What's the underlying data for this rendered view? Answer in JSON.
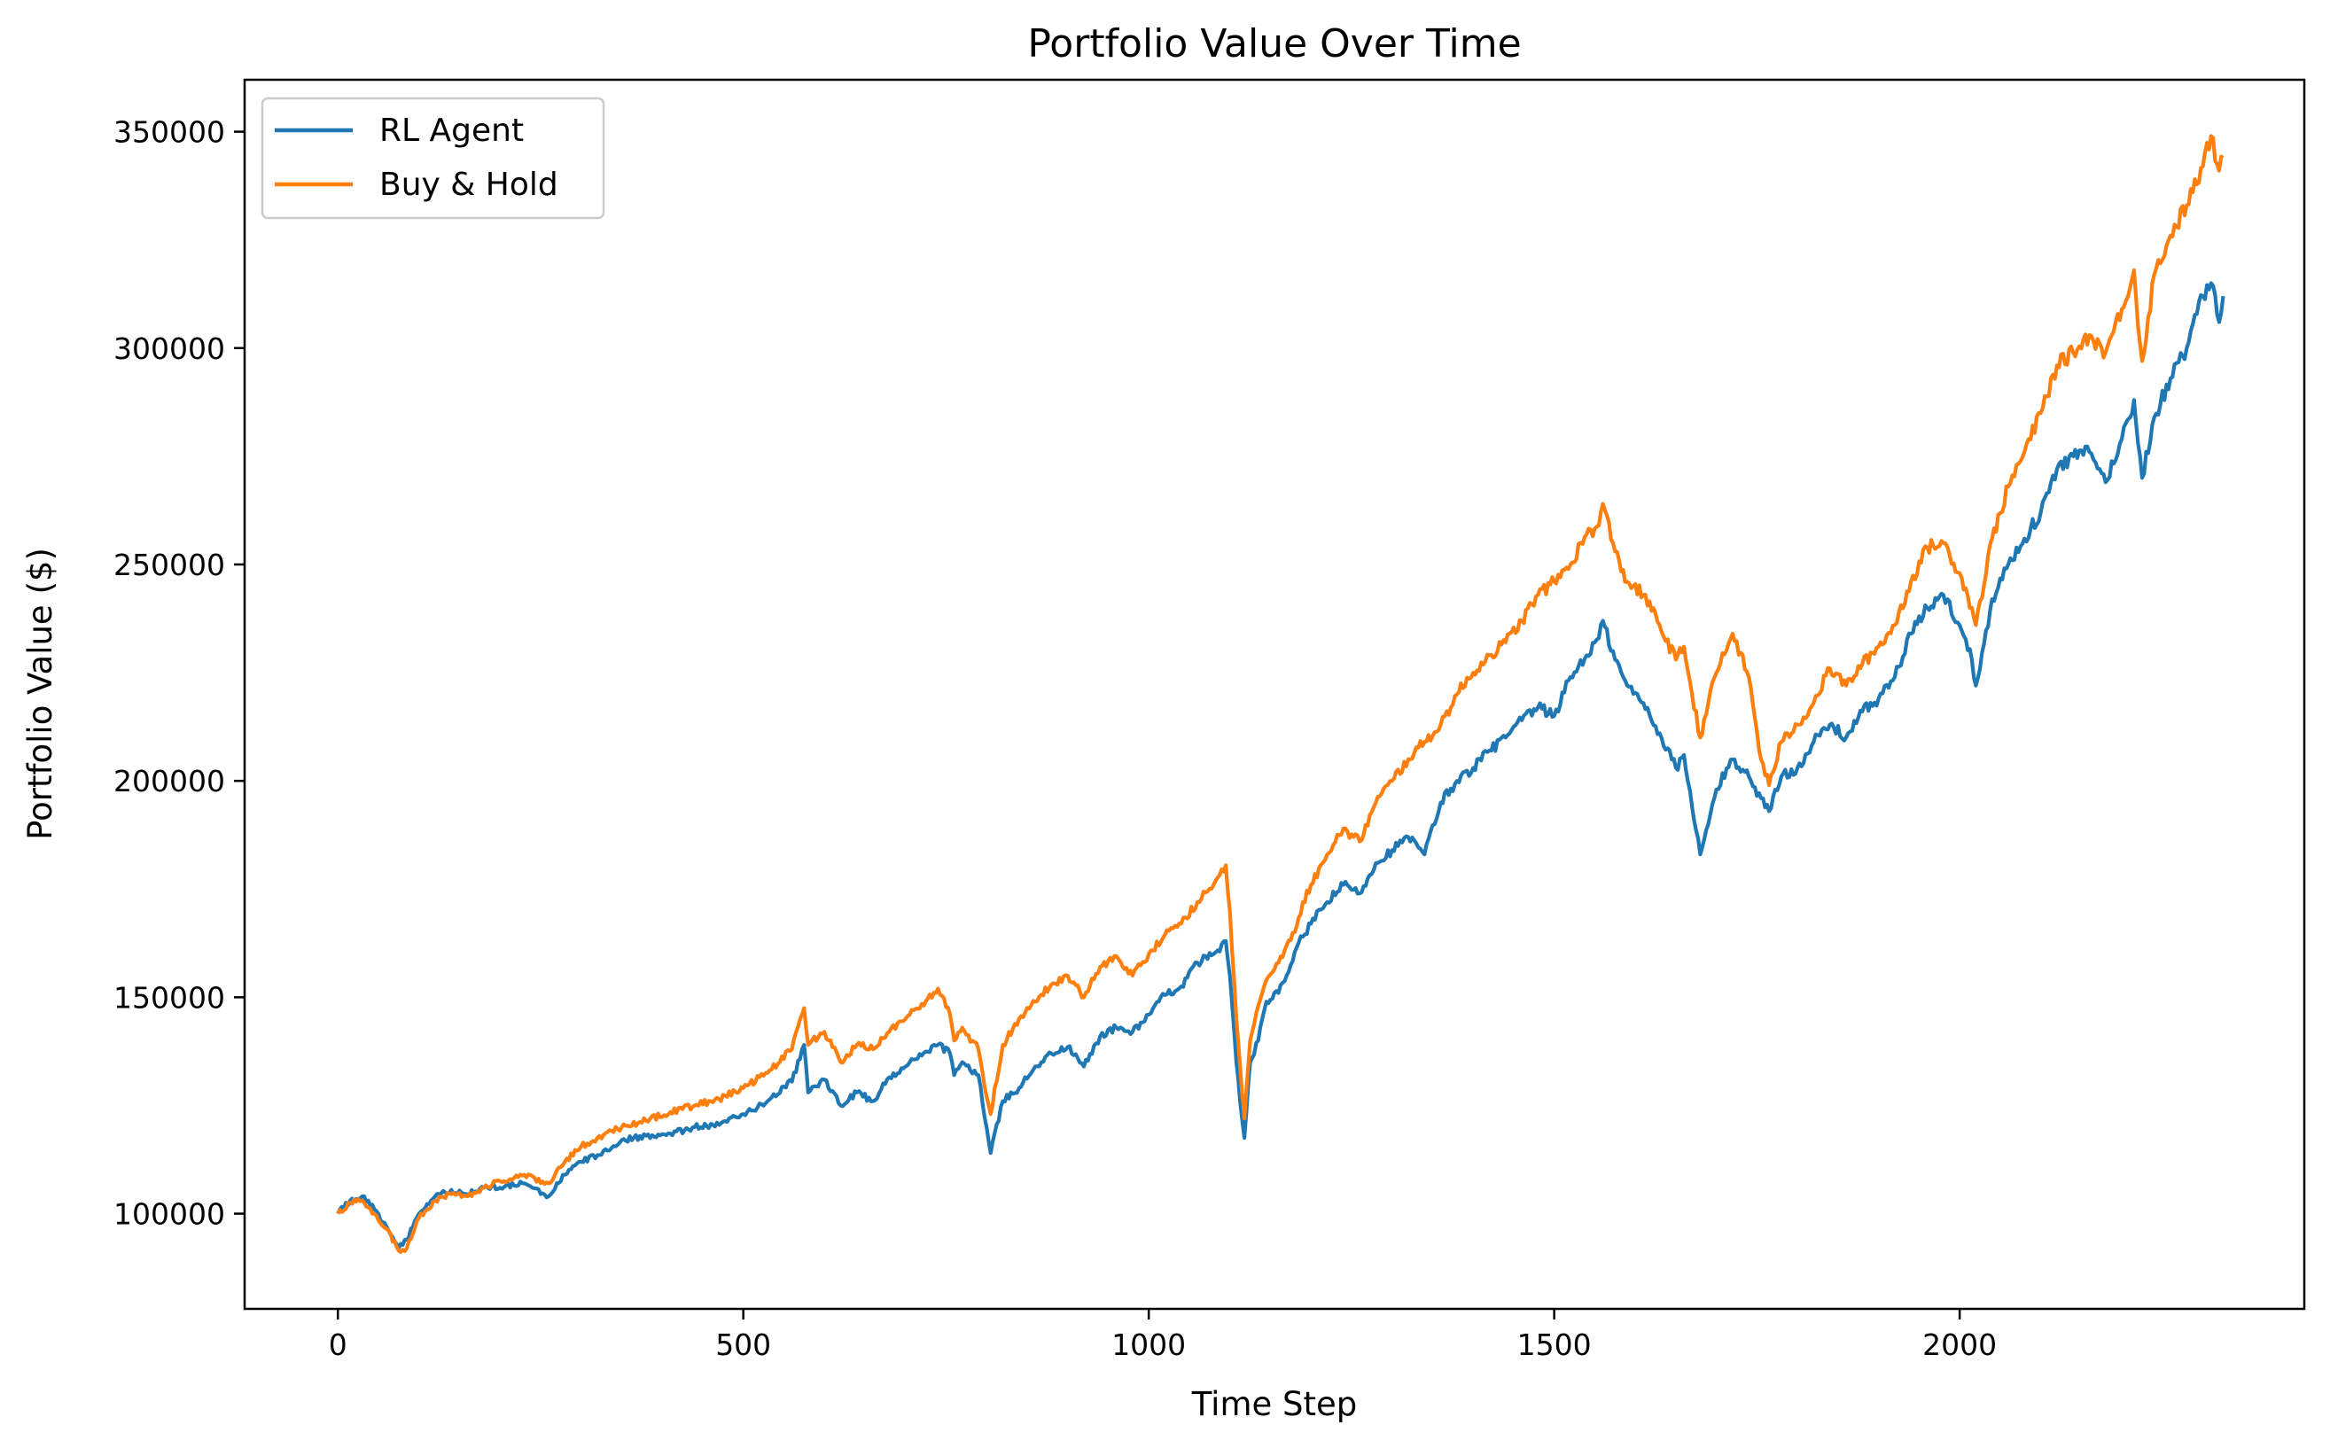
{
  "chart_data": {
    "type": "line",
    "title": "Portfolio Value Over Time",
    "xlabel": "Time Step",
    "ylabel": "Portfolio Value ($)",
    "xlim": [
      -115,
      2425
    ],
    "ylim": [
      78000,
      362000
    ],
    "xticks": [
      0,
      500,
      1000,
      1500,
      2000
    ],
    "yticks": [
      100000,
      150000,
      200000,
      250000,
      300000,
      350000
    ],
    "grid": false,
    "legend_position": "top-left",
    "series": [
      {
        "name": "RL Agent",
        "color": "#1f77b4",
        "points": [
          [
            0,
            100000
          ],
          [
            15,
            103000
          ],
          [
            30,
            104000
          ],
          [
            45,
            101000
          ],
          [
            60,
            97000
          ],
          [
            75,
            92000
          ],
          [
            85,
            94000
          ],
          [
            100,
            100000
          ],
          [
            120,
            104000
          ],
          [
            140,
            105500
          ],
          [
            160,
            104500
          ],
          [
            180,
            106000
          ],
          [
            200,
            106000
          ],
          [
            230,
            107000
          ],
          [
            260,
            104000
          ],
          [
            280,
            109000
          ],
          [
            300,
            112000
          ],
          [
            320,
            113500
          ],
          [
            350,
            117000
          ],
          [
            380,
            118000
          ],
          [
            410,
            118500
          ],
          [
            440,
            120000
          ],
          [
            470,
            120500
          ],
          [
            500,
            123000
          ],
          [
            530,
            126000
          ],
          [
            560,
            130500
          ],
          [
            575,
            139000
          ],
          [
            580,
            128000
          ],
          [
            600,
            131000
          ],
          [
            620,
            125000
          ],
          [
            640,
            128000
          ],
          [
            660,
            126000
          ],
          [
            680,
            131500
          ],
          [
            700,
            134000
          ],
          [
            720,
            136500
          ],
          [
            740,
            139000
          ],
          [
            755,
            137000
          ],
          [
            760,
            132000
          ],
          [
            770,
            135000
          ],
          [
            790,
            132000
          ],
          [
            800,
            120000
          ],
          [
            805,
            114000
          ],
          [
            820,
            126000
          ],
          [
            840,
            129000
          ],
          [
            860,
            134000
          ],
          [
            880,
            137000
          ],
          [
            900,
            138500
          ],
          [
            920,
            134000
          ],
          [
            940,
            141000
          ],
          [
            960,
            143000
          ],
          [
            980,
            142000
          ],
          [
            1000,
            146000
          ],
          [
            1020,
            150500
          ],
          [
            1040,
            152500
          ],
          [
            1060,
            158000
          ],
          [
            1080,
            160000
          ],
          [
            1095,
            163000
          ],
          [
            1100,
            155000
          ],
          [
            1108,
            135000
          ],
          [
            1115,
            122000
          ],
          [
            1118,
            117500
          ],
          [
            1125,
            135000
          ],
          [
            1135,
            140000
          ],
          [
            1145,
            149000
          ],
          [
            1160,
            151000
          ],
          [
            1170,
            155000
          ],
          [
            1180,
            160500
          ],
          [
            1190,
            164000
          ],
          [
            1200,
            167000
          ],
          [
            1220,
            172000
          ],
          [
            1240,
            176000
          ],
          [
            1260,
            174000
          ],
          [
            1280,
            181000
          ],
          [
            1300,
            184000
          ],
          [
            1320,
            187000
          ],
          [
            1340,
            183000
          ],
          [
            1360,
            195000
          ],
          [
            1380,
            200000
          ],
          [
            1400,
            203000
          ],
          [
            1420,
            207000
          ],
          [
            1440,
            210000
          ],
          [
            1460,
            214000
          ],
          [
            1480,
            217000
          ],
          [
            1500,
            215000
          ],
          [
            1520,
            224000
          ],
          [
            1540,
            229000
          ],
          [
            1555,
            233000
          ],
          [
            1560,
            237000
          ],
          [
            1575,
            228000
          ],
          [
            1590,
            222000
          ],
          [
            1610,
            218000
          ],
          [
            1630,
            211000
          ],
          [
            1650,
            203000
          ],
          [
            1660,
            206000
          ],
          [
            1670,
            194000
          ],
          [
            1680,
            183000
          ],
          [
            1690,
            190000
          ],
          [
            1700,
            198000
          ],
          [
            1720,
            205000
          ],
          [
            1740,
            201000
          ],
          [
            1755,
            196000
          ],
          [
            1765,
            193000
          ],
          [
            1780,
            201000
          ],
          [
            1800,
            203000
          ],
          [
            1820,
            209000
          ],
          [
            1840,
            213000
          ],
          [
            1860,
            210000
          ],
          [
            1880,
            216000
          ],
          [
            1900,
            219000
          ],
          [
            1920,
            224000
          ],
          [
            1940,
            234000
          ],
          [
            1960,
            240000
          ],
          [
            1980,
            243000
          ],
          [
            2000,
            236000
          ],
          [
            2015,
            228000
          ],
          [
            2020,
            222000
          ],
          [
            2040,
            242000
          ],
          [
            2060,
            250000
          ],
          [
            2080,
            256000
          ],
          [
            2100,
            262000
          ],
          [
            2120,
            272000
          ],
          [
            2140,
            275000
          ],
          [
            2160,
            276000
          ],
          [
            2180,
            269000
          ],
          [
            2200,
            279000
          ],
          [
            2215,
            288000
          ],
          [
            2220,
            278000
          ],
          [
            2225,
            270000
          ],
          [
            2240,
            284000
          ],
          [
            2260,
            293000
          ],
          [
            2280,
            300000
          ],
          [
            2300,
            312000
          ],
          [
            2310,
            315000
          ],
          [
            2320,
            306000
          ],
          [
            2325,
            312000
          ]
        ]
      },
      {
        "name": "Buy & Hold",
        "color": "#ff7f0e",
        "points": [
          [
            0,
            100000
          ],
          [
            15,
            102500
          ],
          [
            30,
            103000
          ],
          [
            45,
            100000
          ],
          [
            60,
            96500
          ],
          [
            75,
            91500
          ],
          [
            85,
            92000
          ],
          [
            100,
            99000
          ],
          [
            120,
            103000
          ],
          [
            140,
            104500
          ],
          [
            160,
            104000
          ],
          [
            180,
            106000
          ],
          [
            200,
            107500
          ],
          [
            230,
            109000
          ],
          [
            260,
            107000
          ],
          [
            280,
            112000
          ],
          [
            300,
            115500
          ],
          [
            320,
            117500
          ],
          [
            350,
            120000
          ],
          [
            380,
            121500
          ],
          [
            410,
            123500
          ],
          [
            440,
            125000
          ],
          [
            470,
            126500
          ],
          [
            500,
            129000
          ],
          [
            530,
            132500
          ],
          [
            560,
            138000
          ],
          [
            575,
            147500
          ],
          [
            580,
            139000
          ],
          [
            600,
            142000
          ],
          [
            620,
            135000
          ],
          [
            640,
            139000
          ],
          [
            660,
            138000
          ],
          [
            680,
            142000
          ],
          [
            700,
            145000
          ],
          [
            720,
            148500
          ],
          [
            740,
            152000
          ],
          [
            755,
            146000
          ],
          [
            760,
            140000
          ],
          [
            770,
            143000
          ],
          [
            790,
            138000
          ],
          [
            800,
            127000
          ],
          [
            805,
            123000
          ],
          [
            820,
            139000
          ],
          [
            840,
            145000
          ],
          [
            860,
            149000
          ],
          [
            880,
            153000
          ],
          [
            900,
            155000
          ],
          [
            920,
            150000
          ],
          [
            940,
            157000
          ],
          [
            960,
            159500
          ],
          [
            980,
            155000
          ],
          [
            1000,
            160000
          ],
          [
            1020,
            164500
          ],
          [
            1040,
            167000
          ],
          [
            1060,
            172000
          ],
          [
            1080,
            176000
          ],
          [
            1095,
            180500
          ],
          [
            1100,
            170000
          ],
          [
            1108,
            145000
          ],
          [
            1115,
            128000
          ],
          [
            1118,
            122000
          ],
          [
            1125,
            140000
          ],
          [
            1135,
            148000
          ],
          [
            1145,
            154000
          ],
          [
            1160,
            158000
          ],
          [
            1170,
            162000
          ],
          [
            1180,
            165000
          ],
          [
            1190,
            172000
          ],
          [
            1200,
            176000
          ],
          [
            1220,
            183000
          ],
          [
            1240,
            189000
          ],
          [
            1260,
            186000
          ],
          [
            1280,
            195000
          ],
          [
            1300,
            200000
          ],
          [
            1320,
            205000
          ],
          [
            1340,
            209000
          ],
          [
            1360,
            213000
          ],
          [
            1380,
            220000
          ],
          [
            1400,
            225000
          ],
          [
            1420,
            229000
          ],
          [
            1440,
            232000
          ],
          [
            1460,
            237000
          ],
          [
            1480,
            243000
          ],
          [
            1500,
            246000
          ],
          [
            1520,
            250000
          ],
          [
            1540,
            257000
          ],
          [
            1555,
            259000
          ],
          [
            1560,
            264000
          ],
          [
            1575,
            253000
          ],
          [
            1590,
            246000
          ],
          [
            1610,
            243000
          ],
          [
            1630,
            236000
          ],
          [
            1650,
            228000
          ],
          [
            1660,
            231000
          ],
          [
            1670,
            220000
          ],
          [
            1680,
            210000
          ],
          [
            1690,
            218000
          ],
          [
            1700,
            225000
          ],
          [
            1720,
            234000
          ],
          [
            1740,
            224000
          ],
          [
            1755,
            205000
          ],
          [
            1765,
            199000
          ],
          [
            1780,
            209000
          ],
          [
            1800,
            213000
          ],
          [
            1820,
            218000
          ],
          [
            1840,
            226000
          ],
          [
            1860,
            222000
          ],
          [
            1880,
            227000
          ],
          [
            1900,
            231000
          ],
          [
            1920,
            236000
          ],
          [
            1940,
            246000
          ],
          [
            1960,
            254000
          ],
          [
            1980,
            255000
          ],
          [
            2000,
            248000
          ],
          [
            2015,
            240000
          ],
          [
            2020,
            236000
          ],
          [
            2040,
            256000
          ],
          [
            2060,
            268000
          ],
          [
            2080,
            276000
          ],
          [
            2100,
            285000
          ],
          [
            2120,
            296000
          ],
          [
            2140,
            299000
          ],
          [
            2160,
            303000
          ],
          [
            2180,
            299000
          ],
          [
            2200,
            309000
          ],
          [
            2215,
            318000
          ],
          [
            2220,
            305000
          ],
          [
            2225,
            297000
          ],
          [
            2240,
            317000
          ],
          [
            2260,
            326000
          ],
          [
            2280,
            333000
          ],
          [
            2300,
            342000
          ],
          [
            2310,
            349000
          ],
          [
            2320,
            341000
          ],
          [
            2325,
            344000
          ]
        ]
      }
    ]
  }
}
